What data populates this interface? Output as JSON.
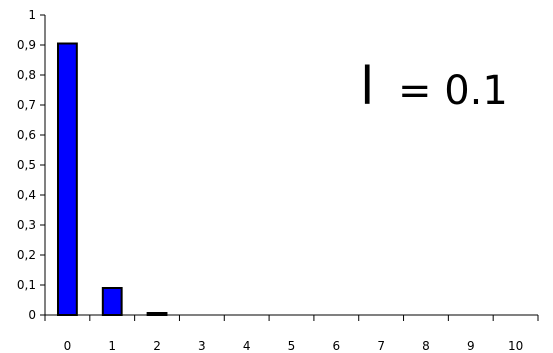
{
  "chart_data": {
    "type": "bar",
    "categories": [
      "0",
      "1",
      "2",
      "3",
      "4",
      "5",
      "6",
      "7",
      "8",
      "9",
      "10"
    ],
    "values": [
      0.905,
      0.09,
      0.005,
      0,
      0,
      0,
      0,
      0,
      0,
      0,
      0
    ],
    "ylim": [
      0,
      1
    ],
    "yticks": [
      "0",
      "0,1",
      "0,2",
      "0,3",
      "0,4",
      "0,5",
      "0,6",
      "0,7",
      "0,8",
      "0,9",
      "1"
    ],
    "grid": false,
    "annotation": {
      "symbol": "l",
      "text": "= 0.1"
    },
    "colors": {
      "bar_fill": "#0000ff",
      "bar_stroke": "#000000",
      "axis": "#000000"
    }
  }
}
